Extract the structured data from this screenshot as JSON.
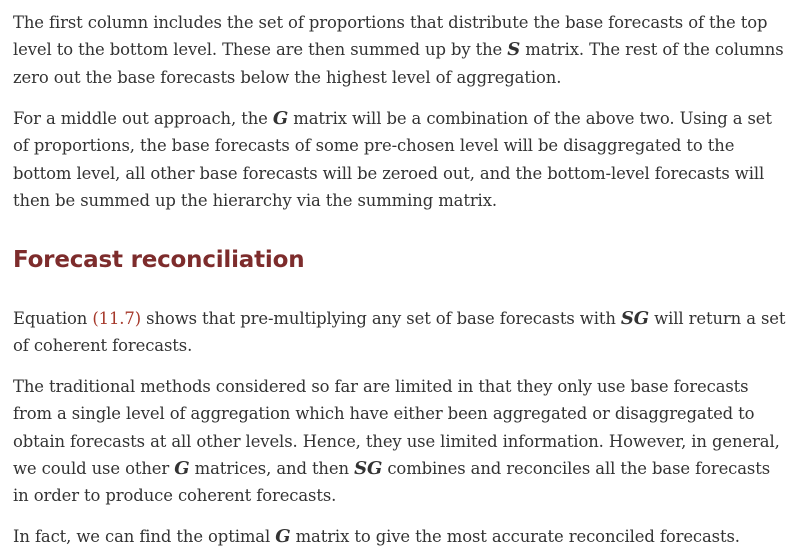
{
  "para1": "The first column includes the set of proportions that distribute the base forecasts of the top level to the bottom level. These are then summed up by the ",
  "para1_math": "S",
  "para1_end": " matrix. The rest of the columns zero out the base forecasts below the highest level of aggregation.",
  "para2_start": "For a middle out approach, the ",
  "para2_math": "G",
  "para2_end": " matrix will be a combination of the above two. Using a set of proportions, the base forecasts of some pre-chosen level will be disaggregated to the bottom level, all other base forecasts will be zeroed out, and the bottom-level forecasts will then be summed up the hierarchy via the summing matrix.",
  "heading": "Forecast reconciliation",
  "para3_start": "Equation ",
  "para3_ref": "(11.7)",
  "para3_mid": " shows that pre-multiplying any set of base forecasts with ",
  "para3_math": "SG",
  "para3_end": " will return a set of coherent forecasts.",
  "para4_start": "The traditional methods considered so far are limited in that they only use base forecasts from a single level of aggregation which have either been aggregated or disaggregated to obtain forecasts at all other levels. Hence, they use limited information. However, in general, we could use other ",
  "para4_math1": "G",
  "para4_mid": " matrices, and then ",
  "para4_math2": "SG",
  "para4_end": " combines and reconciles all the base forecasts in order to produce coherent forecasts.",
  "para5_start": "In fact, we can find the optimal ",
  "para5_math": "G",
  "para5_end": " matrix to give the most accurate reconciled forecasts."
}
